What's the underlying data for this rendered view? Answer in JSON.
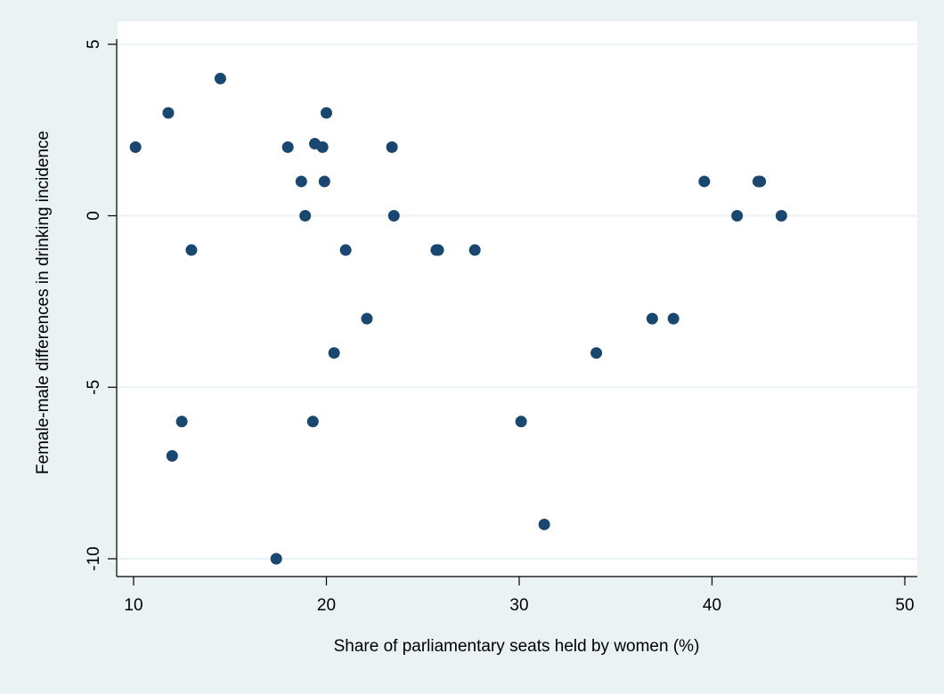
{
  "colors": {
    "background": "#eaf2f3",
    "plot_area": "#ffffff",
    "gridline": "#eaf2f3",
    "marker": "#1a476f",
    "axis": "#000000"
  },
  "chart_data": {
    "type": "scatter",
    "title": "",
    "xlabel": "Share of parliamentary seats held by women (%)",
    "ylabel": "Female-male differences in drinking incidence",
    "xlim": [
      9.5,
      51
    ],
    "ylim": [
      -10.5,
      5.5
    ],
    "xticks": [
      10,
      20,
      30,
      40,
      50
    ],
    "yticks": [
      5,
      0,
      -5,
      -10
    ],
    "grid": "horizontal",
    "legend": "none",
    "points": [
      {
        "x": 10.1,
        "y": 2
      },
      {
        "x": 11.8,
        "y": 3
      },
      {
        "x": 12.0,
        "y": -7
      },
      {
        "x": 12.5,
        "y": -6
      },
      {
        "x": 13.0,
        "y": -1
      },
      {
        "x": 14.5,
        "y": 4
      },
      {
        "x": 17.4,
        "y": -10
      },
      {
        "x": 18.0,
        "y": 2
      },
      {
        "x": 18.7,
        "y": 1
      },
      {
        "x": 18.9,
        "y": 0
      },
      {
        "x": 19.3,
        "y": -6
      },
      {
        "x": 19.4,
        "y": 2.1
      },
      {
        "x": 19.8,
        "y": 2
      },
      {
        "x": 19.9,
        "y": 1
      },
      {
        "x": 20.0,
        "y": 3
      },
      {
        "x": 20.4,
        "y": -4
      },
      {
        "x": 21.0,
        "y": -1
      },
      {
        "x": 22.1,
        "y": -3
      },
      {
        "x": 23.4,
        "y": 2
      },
      {
        "x": 23.5,
        "y": 0
      },
      {
        "x": 25.7,
        "y": -1
      },
      {
        "x": 25.8,
        "y": -1
      },
      {
        "x": 27.7,
        "y": -1
      },
      {
        "x": 30.1,
        "y": -6
      },
      {
        "x": 31.3,
        "y": -9
      },
      {
        "x": 34.0,
        "y": -4
      },
      {
        "x": 36.9,
        "y": -3
      },
      {
        "x": 38.0,
        "y": -3
      },
      {
        "x": 39.6,
        "y": 1
      },
      {
        "x": 41.3,
        "y": 0
      },
      {
        "x": 42.4,
        "y": 1
      },
      {
        "x": 42.5,
        "y": 1
      },
      {
        "x": 43.6,
        "y": 0
      }
    ]
  }
}
